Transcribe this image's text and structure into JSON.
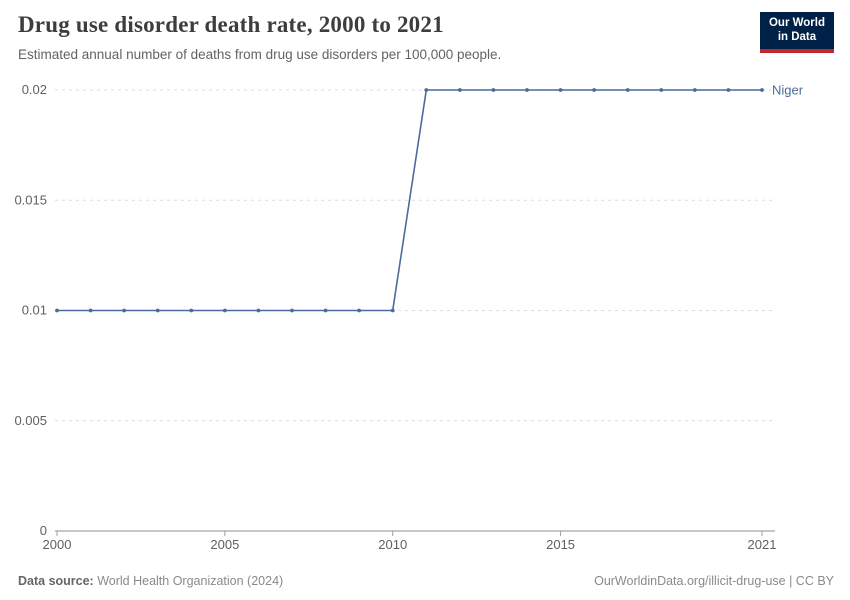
{
  "header": {
    "title": "Drug use disorder death rate, 2000 to 2021",
    "subtitle": "Estimated annual number of deaths from drug use disorders per 100,000 people."
  },
  "logo": {
    "line1": "Our World",
    "line2": "in Data"
  },
  "colors": {
    "logo_bg": "#002147",
    "logo_accent": "#c1272d",
    "grid": "#dcdcdc",
    "axis": "#8f8f8f",
    "tick_text": "#606060",
    "series_niger": "#4c6a9c"
  },
  "chart_data": {
    "type": "line",
    "title": "Drug use disorder death rate, 2000 to 2021",
    "subtitle": "Estimated annual number of deaths from drug use disorders per 100,000 people.",
    "xlabel": "",
    "ylabel": "",
    "xlim": [
      2000,
      2021
    ],
    "ylim": [
      0,
      0.02
    ],
    "grid": true,
    "legend_position": "end-of-line",
    "xticks": [
      2000,
      2005,
      2010,
      2015,
      2021
    ],
    "xtick_labels": [
      "2000",
      "2005",
      "2010",
      "2015",
      "2021"
    ],
    "yticks": [
      0,
      0.005,
      0.01,
      0.015,
      0.02
    ],
    "ytick_labels": [
      "0",
      "0.005",
      "0.01",
      "0.015",
      "0.02"
    ],
    "series": [
      {
        "name": "Niger",
        "color": "#4c6a9c",
        "x": [
          2000,
          2001,
          2002,
          2003,
          2004,
          2005,
          2006,
          2007,
          2008,
          2009,
          2010,
          2011,
          2012,
          2013,
          2014,
          2015,
          2016,
          2017,
          2018,
          2019,
          2020,
          2021
        ],
        "values": [
          0.01,
          0.01,
          0.01,
          0.01,
          0.01,
          0.01,
          0.01,
          0.01,
          0.01,
          0.01,
          0.01,
          0.02,
          0.02,
          0.02,
          0.02,
          0.02,
          0.02,
          0.02,
          0.02,
          0.02,
          0.02,
          0.02
        ]
      }
    ]
  },
  "footer": {
    "source_label": "Data source:",
    "source_text": " World Health Organization (2024)",
    "right": "OurWorldinData.org/illicit-drug-use | CC BY"
  }
}
